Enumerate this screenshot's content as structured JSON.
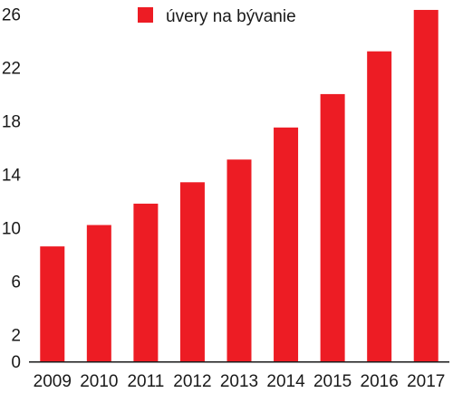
{
  "chart_data": {
    "type": "bar",
    "categories": [
      "2009",
      "2010",
      "2011",
      "2012",
      "2013",
      "2014",
      "2015",
      "2016",
      "2017"
    ],
    "series": [
      {
        "name": "úvery na bývanie",
        "values": [
          8.6,
          10.2,
          11.8,
          13.4,
          15.1,
          17.5,
          20.0,
          23.2,
          26.3
        ],
        "color": "#ed1c24"
      }
    ],
    "yticks": [
      0,
      2,
      6,
      10,
      14,
      18,
      22,
      26
    ],
    "ylim": [
      0,
      26.5
    ],
    "title": "",
    "xlabel": "",
    "ylabel": "",
    "grid": false,
    "legend_position": "top-center"
  }
}
